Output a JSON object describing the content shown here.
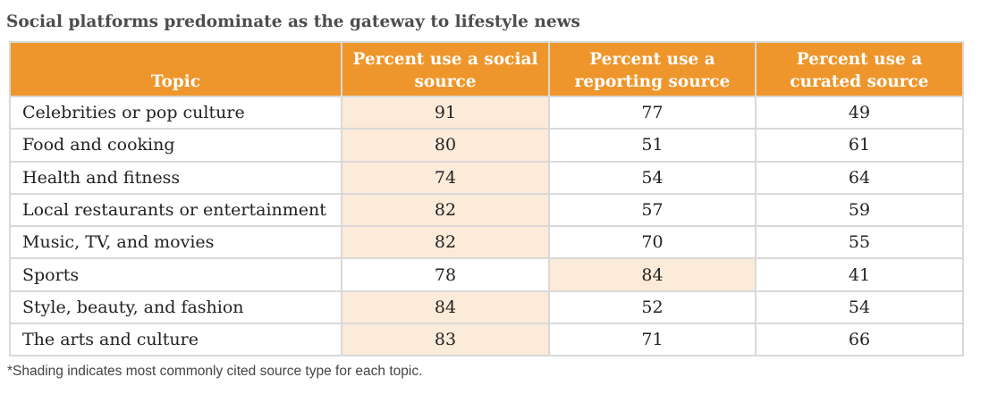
{
  "title": "Social platforms predominate as the gateway to lifestyle news",
  "footnote": "*Shading indicates most commonly cited source type for each topic.",
  "colors": {
    "header_bg": "#ee962b",
    "shade": "#fcebd9",
    "border": "#d9d9d9"
  },
  "chart_data": {
    "type": "table",
    "title": "Social platforms predominate as the gateway to lifestyle news",
    "columns": [
      "Topic",
      "Percent use a social source",
      "Percent use a reporting source",
      "Percent use a curated source"
    ],
    "header_lines": [
      [
        "Topic"
      ],
      [
        "Percent use a social",
        "source"
      ],
      [
        "Percent use a",
        "reporting source"
      ],
      [
        "Percent use a",
        "curated source"
      ]
    ],
    "rows": [
      {
        "topic": "Celebrities or pop culture",
        "values": [
          "91",
          "77",
          "49"
        ],
        "shaded": 0
      },
      {
        "topic": "Food and cooking",
        "values": [
          "80",
          "51",
          "61"
        ],
        "shaded": 0
      },
      {
        "topic": "Health and fitness",
        "values": [
          "74",
          "54",
          "64"
        ],
        "shaded": 0
      },
      {
        "topic": "Local restaurants or entertainment",
        "values": [
          "82",
          "57",
          "59"
        ],
        "shaded": 0
      },
      {
        "topic": "Music, TV, and movies",
        "values": [
          "82",
          "70",
          "55"
        ],
        "shaded": 0
      },
      {
        "topic": "Sports",
        "values": [
          "78",
          "84",
          "41"
        ],
        "shaded": 1
      },
      {
        "topic": "Style, beauty, and fashion",
        "values": [
          "84",
          "52",
          "54"
        ],
        "shaded": 0
      },
      {
        "topic": "The arts and culture",
        "values": [
          "83",
          "71",
          "66"
        ],
        "shaded": 0
      }
    ]
  }
}
